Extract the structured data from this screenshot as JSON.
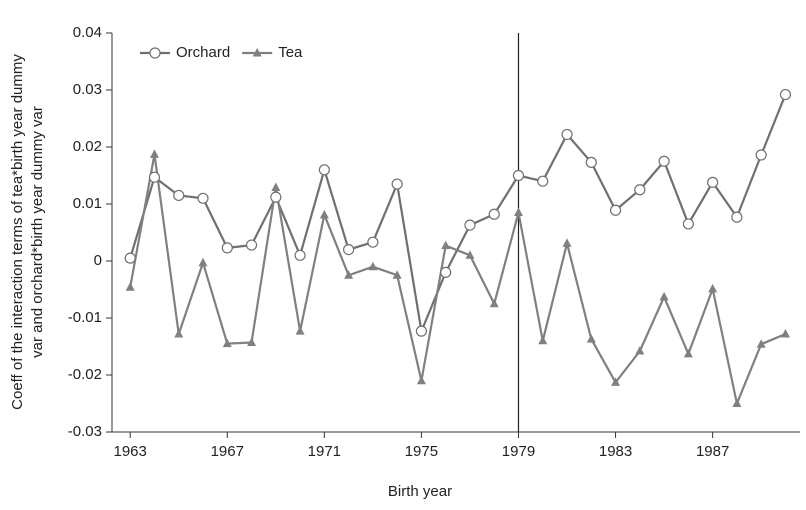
{
  "chart_data": {
    "type": "line",
    "xlabel": "Birth year",
    "ylabel": [
      "Coeff of the interaction terms of tea*birth year dummy",
      "var and orchard*birth year dummy var"
    ],
    "x": [
      1963,
      1964,
      1965,
      1966,
      1967,
      1968,
      1969,
      1970,
      1971,
      1972,
      1973,
      1974,
      1975,
      1976,
      1977,
      1978,
      1979,
      1980,
      1981,
      1982,
      1983,
      1984,
      1985,
      1986,
      1987,
      1988,
      1989,
      1990
    ],
    "series": [
      {
        "name": "Orchard",
        "color": "#707070",
        "marker": "circle",
        "values": [
          0.0005,
          0.0147,
          0.0115,
          0.011,
          0.0023,
          0.0028,
          0.0112,
          0.001,
          0.016,
          0.002,
          0.0033,
          0.0135,
          -0.0123,
          -0.002,
          0.0063,
          0.0082,
          0.015,
          0.014,
          0.0222,
          0.0173,
          0.0089,
          0.0125,
          0.0175,
          0.0065,
          0.0138,
          0.0077,
          0.0186,
          0.0292
        ]
      },
      {
        "name": "Tea",
        "color": "#808080",
        "marker": "triangle",
        "values": [
          -0.0046,
          0.0187,
          -0.0128,
          -0.0003,
          -0.0145,
          -0.0143,
          0.0129,
          -0.0123,
          0.0081,
          -0.0025,
          -0.001,
          -0.0025,
          -0.021,
          0.0027,
          0.001,
          -0.0075,
          0.0085,
          -0.014,
          0.0031,
          -0.0137,
          -0.0213,
          -0.0158,
          -0.0063,
          -0.0163,
          -0.0049,
          -0.025,
          -0.0146,
          -0.0128
        ]
      }
    ],
    "xlim": [
      1962.25,
      1990.6
    ],
    "xticks": [
      1963,
      1967,
      1971,
      1975,
      1979,
      1983,
      1987
    ],
    "ylim": [
      -0.03,
      0.04
    ],
    "yticks": [
      -0.03,
      -0.02,
      -0.01,
      0,
      0.01,
      0.02,
      0.03,
      0.04
    ],
    "vline": 1979,
    "legend": "top-left"
  }
}
